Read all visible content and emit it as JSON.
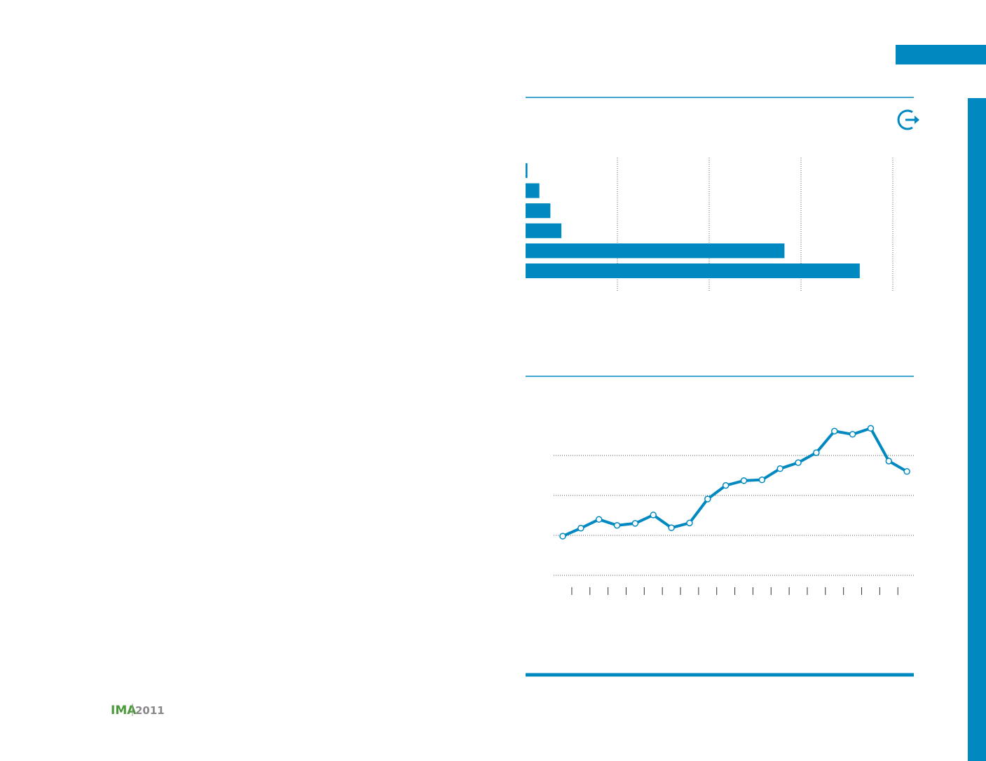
{
  "logo": {
    "brand": "IMA",
    "year": "2011"
  },
  "chart_data": [
    {
      "type": "barh",
      "categories": [
        null,
        null,
        null,
        null,
        null,
        null
      ],
      "values": [
        0.02,
        0.15,
        0.27,
        0.39,
        2.82,
        3.64
      ],
      "color": "#0088c0",
      "xlim": [
        0,
        4
      ],
      "xticks": [
        1,
        2,
        3,
        4
      ],
      "grid": true
    },
    {
      "type": "line",
      "categories": [
        null,
        null,
        null,
        null,
        null,
        null,
        null,
        null,
        null,
        null,
        null,
        null,
        null,
        null,
        null,
        null,
        null,
        null,
        null,
        null
      ],
      "values": [
        0.98,
        1.18,
        1.4,
        1.25,
        1.3,
        1.51,
        1.19,
        1.31,
        1.91,
        2.25,
        2.37,
        2.39,
        2.67,
        2.82,
        3.07,
        3.61,
        3.53,
        3.68,
        2.86,
        2.6
      ],
      "color": "#0088c0",
      "ylim": [
        0,
        4
      ],
      "yticks": [
        0,
        1,
        2,
        3
      ],
      "grid": true
    }
  ]
}
